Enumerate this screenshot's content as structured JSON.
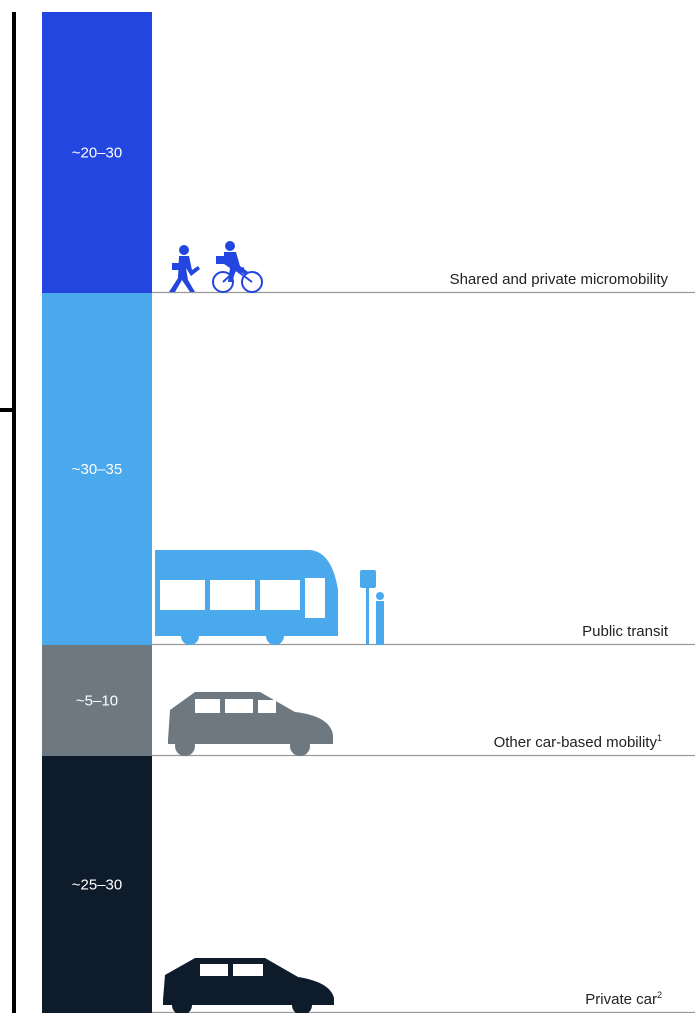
{
  "segments": [
    {
      "range": "~20–30",
      "label": "Shared and private micromobility",
      "color": "#2346e0"
    },
    {
      "range": "~30–35",
      "label": "Public transit",
      "color": "#4aa9ec"
    },
    {
      "range": "~5–10",
      "label": "Other car-based mobility",
      "note": "1",
      "color": "#6e7880"
    },
    {
      "range": "~25–30",
      "label": "Private car",
      "note": "2",
      "color": "#0e1b2a"
    }
  ]
}
